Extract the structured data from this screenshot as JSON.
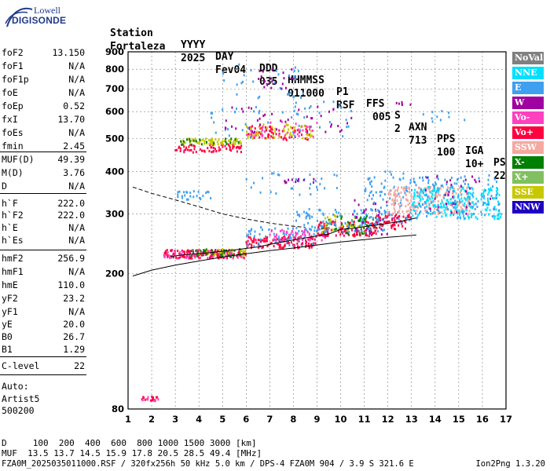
{
  "logo": {
    "top": "Lowell",
    "main": "DIGISONDE"
  },
  "header": {
    "labels": [
      "Station",
      "YYYY",
      "DAY",
      "DDD",
      "HHMMSS",
      "P1",
      "FFS",
      "S",
      "AXN",
      "PPS",
      "IGA",
      "PS"
    ],
    "values": [
      "Fortaleza",
      "2025",
      "Fev04",
      "035",
      "011000",
      "RSF",
      "005",
      "2",
      "713",
      "100",
      "10+",
      "22"
    ]
  },
  "params": {
    "group1": [
      {
        "k": "foF2",
        "v": "13.150"
      },
      {
        "k": "foF1",
        "v": "N/A"
      },
      {
        "k": "foF1p",
        "v": "N/A"
      },
      {
        "k": "foE",
        "v": "N/A"
      },
      {
        "k": "foEp",
        "v": "0.52"
      },
      {
        "k": "fxI",
        "v": "13.70"
      },
      {
        "k": "foEs",
        "v": "N/A"
      },
      {
        "k": "fmin",
        "v": "2.45"
      }
    ],
    "group2": [
      {
        "k": "MUF(D)",
        "v": "49.39"
      },
      {
        "k": "M(D)",
        "v": "3.76"
      },
      {
        "k": "D",
        "v": "N/A"
      }
    ],
    "group3": [
      {
        "k": "h`F",
        "v": "222.0"
      },
      {
        "k": "h`F2",
        "v": "222.0"
      },
      {
        "k": "h`E",
        "v": "N/A"
      },
      {
        "k": "h`Es",
        "v": "N/A"
      }
    ],
    "group4": [
      {
        "k": "hmF2",
        "v": "256.9"
      },
      {
        "k": "hmF1",
        "v": "N/A"
      },
      {
        "k": "hmE",
        "v": "110.0"
      },
      {
        "k": "yF2",
        "v": "23.2"
      },
      {
        "k": "yF1",
        "v": "N/A"
      },
      {
        "k": "yE",
        "v": "20.0"
      },
      {
        "k": "B0",
        "v": "26.7"
      },
      {
        "k": "B1",
        "v": "1.29"
      }
    ],
    "clevel": {
      "k": "C-level",
      "v": "22"
    },
    "auto": [
      "Auto:",
      "Artist5",
      "500200"
    ]
  },
  "legend": [
    {
      "label": "NoVal",
      "color": "#808080"
    },
    {
      "label": "NNE",
      "color": "#00e0ff"
    },
    {
      "label": "E",
      "color": "#40a0f0"
    },
    {
      "label": "W",
      "color": "#a000a0"
    },
    {
      "label": "Vo-",
      "color": "#ff40c0"
    },
    {
      "label": "Vo+",
      "color": "#ff0040"
    },
    {
      "label": "SSW",
      "color": "#f4a8a0"
    },
    {
      "label": "X-",
      "color": "#008000"
    },
    {
      "label": "X+",
      "color": "#80c060"
    },
    {
      "label": "SSE",
      "color": "#c8c800"
    },
    {
      "label": "NNW",
      "color": "#2000c0"
    }
  ],
  "bottom": {
    "d_row": "D     100  200  400  600  800 1000 1500 3000 [km]",
    "muf_row": "MUF  13.5 13.7 14.5 15.9 17.8 20.5 28.5 49.4 [MHz]",
    "footer": "FZA0M_2025035011000.RSF / 320fx256h 50 kHz 5.0 km / DPS-4 FZA0M 904 / 3.9 S 321.6 E",
    "footer_right": "Ion2Png 1.3.20"
  },
  "chart_data": {
    "type": "scatter",
    "title": "",
    "xlabel": "",
    "ylabel": "",
    "xlim": [
      1,
      17
    ],
    "ylim": [
      80,
      900
    ],
    "y_scale": "log",
    "x_ticks": [
      1,
      2,
      3,
      4,
      5,
      6,
      7,
      8,
      9,
      10,
      11,
      12,
      13,
      14,
      15,
      16,
      17
    ],
    "y_ticks": [
      80,
      200,
      300,
      400,
      500,
      600,
      700,
      800,
      900
    ],
    "grid": true,
    "clusters": [
      {
        "color": "#ff0040",
        "x0": 1.5,
        "x1": 2.3,
        "y0": 84,
        "y1": 87,
        "n": 14
      },
      {
        "color": "#ff40c0",
        "x0": 1.5,
        "x1": 2.3,
        "y0": 84,
        "y1": 87,
        "n": 8
      },
      {
        "color": "#ff0040",
        "x0": 2.5,
        "x1": 6.0,
        "y0": 222,
        "y1": 235,
        "n": 160
      },
      {
        "color": "#ff40c0",
        "x0": 2.5,
        "x1": 6.0,
        "y0": 222,
        "y1": 235,
        "n": 70
      },
      {
        "color": "#008000",
        "x0": 3.5,
        "x1": 6.0,
        "y0": 224,
        "y1": 236,
        "n": 35
      },
      {
        "color": "#c8c800",
        "x0": 4.0,
        "x1": 6.0,
        "y0": 226,
        "y1": 236,
        "n": 25
      },
      {
        "color": "#ff0040",
        "x0": 6.0,
        "x1": 9.0,
        "y0": 238,
        "y1": 258,
        "n": 120
      },
      {
        "color": "#40a0f0",
        "x0": 6.0,
        "x1": 9.0,
        "y0": 240,
        "y1": 275,
        "n": 60
      },
      {
        "color": "#ff40c0",
        "x0": 7.0,
        "x1": 9.5,
        "y0": 250,
        "y1": 270,
        "n": 60
      },
      {
        "color": "#ff0040",
        "x0": 9.0,
        "x1": 11.5,
        "y0": 258,
        "y1": 285,
        "n": 130
      },
      {
        "color": "#008000",
        "x0": 9.2,
        "x1": 11.5,
        "y0": 262,
        "y1": 300,
        "n": 50
      },
      {
        "color": "#c8c800",
        "x0": 9.0,
        "x1": 11.0,
        "y0": 265,
        "y1": 300,
        "n": 30
      },
      {
        "color": "#40a0f0",
        "x0": 8.0,
        "x1": 12.0,
        "y0": 265,
        "y1": 310,
        "n": 100
      },
      {
        "color": "#a000a0",
        "x0": 10.5,
        "x1": 12.5,
        "y0": 260,
        "y1": 330,
        "n": 30
      },
      {
        "color": "#ff0040",
        "x0": 11.5,
        "x1": 13.0,
        "y0": 270,
        "y1": 300,
        "n": 60
      },
      {
        "color": "#40a0f0",
        "x0": 11.0,
        "x1": 13.0,
        "y0": 280,
        "y1": 400,
        "n": 80
      },
      {
        "color": "#f4a8a0",
        "x0": 12.0,
        "x1": 15.5,
        "y0": 300,
        "y1": 360,
        "n": 220
      },
      {
        "color": "#00e0ff",
        "x0": 13.0,
        "x1": 16.8,
        "y0": 290,
        "y1": 360,
        "n": 220
      },
      {
        "color": "#40a0f0",
        "x0": 13.0,
        "x1": 16.8,
        "y0": 290,
        "y1": 390,
        "n": 120
      },
      {
        "color": "#a000a0",
        "x0": 13.5,
        "x1": 16.5,
        "y0": 300,
        "y1": 390,
        "n": 30
      },
      {
        "color": "#40a0f0",
        "x0": 3.0,
        "x1": 4.5,
        "y0": 330,
        "y1": 350,
        "n": 25
      },
      {
        "color": "#40a0f0",
        "x0": 6.0,
        "x1": 10.0,
        "y0": 340,
        "y1": 400,
        "n": 30
      },
      {
        "color": "#a000a0",
        "x0": 7.5,
        "x1": 9.0,
        "y0": 370,
        "y1": 380,
        "n": 12
      },
      {
        "color": "#ff0040",
        "x0": 3.0,
        "x1": 5.8,
        "y0": 455,
        "y1": 480,
        "n": 70
      },
      {
        "color": "#c8c800",
        "x0": 3.2,
        "x1": 5.8,
        "y0": 480,
        "y1": 500,
        "n": 70
      },
      {
        "color": "#008000",
        "x0": 3.2,
        "x1": 5.8,
        "y0": 478,
        "y1": 500,
        "n": 20
      },
      {
        "color": "#ff0040",
        "x0": 6.0,
        "x1": 8.8,
        "y0": 495,
        "y1": 545,
        "n": 70
      },
      {
        "color": "#c8c800",
        "x0": 6.0,
        "x1": 8.8,
        "y0": 500,
        "y1": 550,
        "n": 50
      },
      {
        "color": "#40a0f0",
        "x0": 4.5,
        "x1": 10.5,
        "y0": 500,
        "y1": 650,
        "n": 50
      },
      {
        "color": "#a000a0",
        "x0": 5.0,
        "x1": 10.5,
        "y0": 520,
        "y1": 620,
        "n": 40
      },
      {
        "color": "#ff40c0",
        "x0": 6.0,
        "x1": 9.0,
        "y0": 500,
        "y1": 560,
        "n": 30
      },
      {
        "color": "#40a0f0",
        "x0": 5.0,
        "x1": 8.5,
        "y0": 650,
        "y1": 850,
        "n": 30
      },
      {
        "color": "#a000a0",
        "x0": 6.5,
        "x1": 8.0,
        "y0": 700,
        "y1": 800,
        "n": 20
      },
      {
        "color": "#a000a0",
        "x0": 12.2,
        "x1": 13.0,
        "y0": 620,
        "y1": 650,
        "n": 6
      },
      {
        "color": "#40a0f0",
        "x0": 13.5,
        "x1": 15.5,
        "y0": 560,
        "y1": 620,
        "n": 10
      }
    ],
    "traces": [
      {
        "style": "solid",
        "x": [
          1.2,
          2.0,
          3.0,
          4.0,
          5.0,
          6.0,
          7.0,
          8.0,
          9.0,
          10.0,
          11.0,
          12.0,
          13.2
        ],
        "y": [
          197,
          205,
          212,
          218,
          224,
          229,
          234,
          238,
          243,
          248,
          252,
          256,
          260
        ]
      },
      {
        "style": "solid",
        "x": [
          2.8,
          3.5,
          4.5,
          5.5,
          6.5,
          7.5,
          8.5,
          9.5,
          10.0,
          10.5,
          11.5,
          12.5,
          13.2
        ],
        "y": [
          225,
          228,
          231,
          235,
          240,
          248,
          255,
          262,
          270,
          272,
          278,
          285,
          292
        ]
      },
      {
        "style": "dashed",
        "x": [
          1.2,
          2.0,
          3.0,
          4.0,
          5.0,
          6.0,
          7.0,
          8.0,
          8.5
        ],
        "y": [
          360,
          345,
          330,
          315,
          300,
          290,
          282,
          276,
          274
        ]
      }
    ]
  }
}
